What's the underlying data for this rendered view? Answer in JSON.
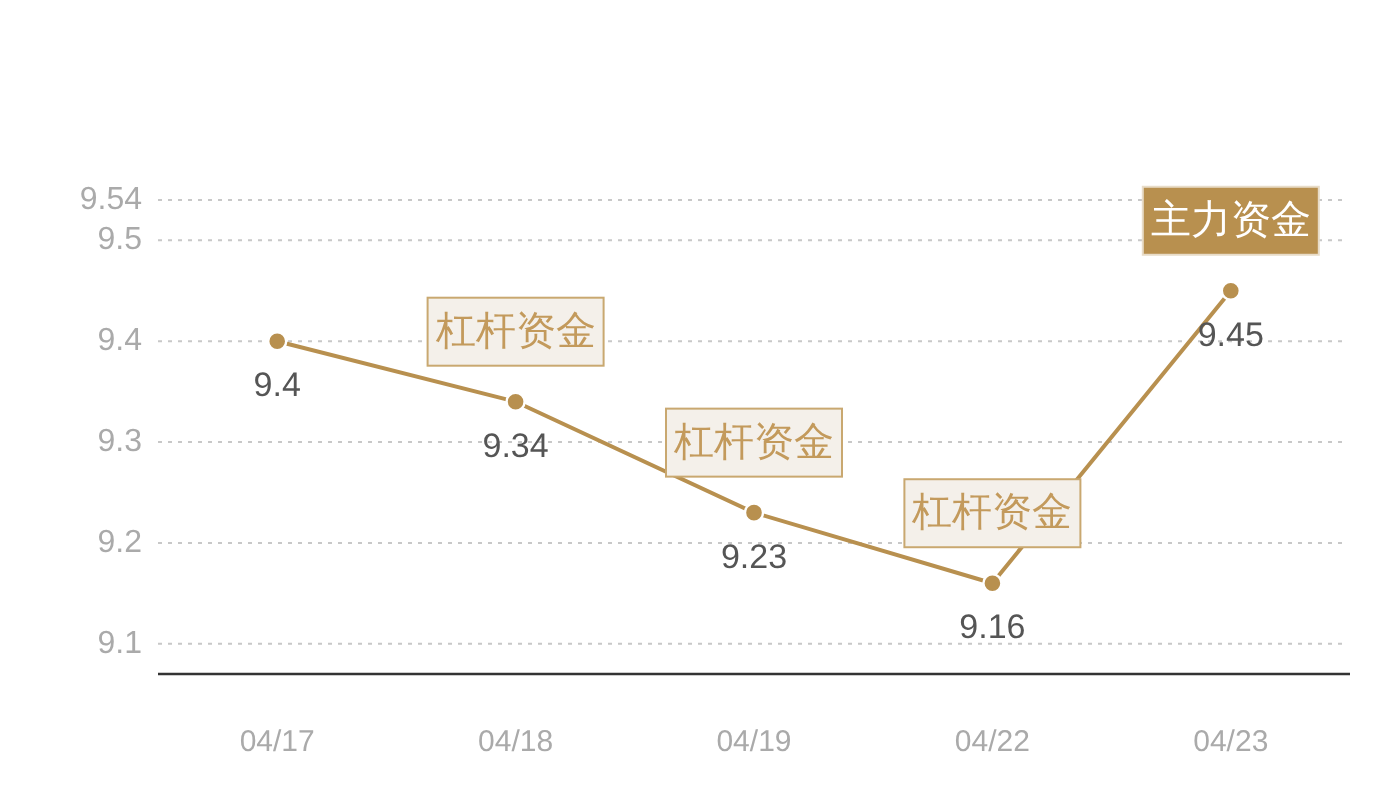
{
  "chart_data": {
    "type": "line",
    "categories": [
      "04/17",
      "04/18",
      "04/19",
      "04/22",
      "04/23"
    ],
    "series": [
      {
        "color": "#b8904f",
        "values": [
          9.4,
          9.34,
          9.23,
          9.16,
          9.45
        ]
      }
    ],
    "ylim": [
      9.07,
      9.54
    ],
    "yticks": [
      9.1,
      9.2,
      9.3,
      9.4,
      9.5,
      9.54
    ],
    "grid": "y",
    "marker": "circle",
    "line_style": "solid",
    "data_labels": true,
    "annotations": [
      {
        "text": "杠杆资金",
        "x": "04/18",
        "y": 9.34
      },
      {
        "text": "杠杆资金",
        "x": "04/19",
        "y": 9.23
      },
      {
        "text": "杠杆资金",
        "x": "04/22",
        "y": 9.16
      },
      {
        "text": "主力资金",
        "x": "04/23",
        "y": 9.45
      }
    ]
  }
}
